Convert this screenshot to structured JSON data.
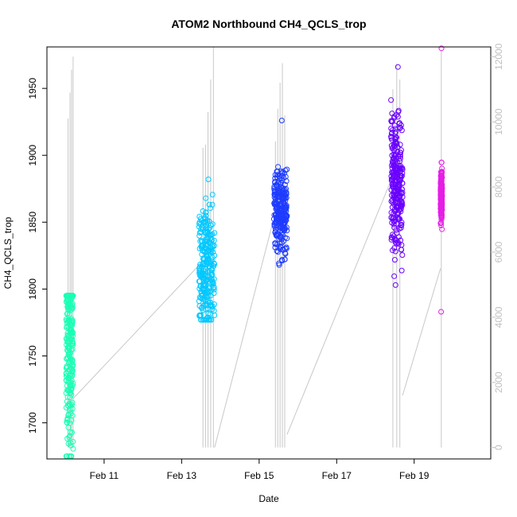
{
  "chart_data": {
    "type": "scatter",
    "title": "ATOM2 Northbound CH4_QCLS_trop",
    "xlabel": "Date",
    "ylabel": "CH4_QCLS_trop",
    "x_ticks": [
      "Feb 11",
      "Feb 13",
      "Feb 15",
      "Feb 17",
      "Feb 19"
    ],
    "x_tick_days": [
      11,
      13,
      15,
      17,
      19
    ],
    "xlim_days": [
      9.75,
      20.75
    ],
    "ylim": [
      1673,
      1981
    ],
    "y_ticks": [
      1700,
      1750,
      1800,
      1850,
      1900,
      1950
    ],
    "y2_ticks": [
      0,
      2000,
      4000,
      6000,
      8000,
      10000,
      12000
    ],
    "y2lim": [
      -350,
      12300
    ],
    "y2_color": "#c0c0c0",
    "grid": false,
    "marker": "open-circle",
    "series": [
      {
        "color": "#1affb4",
        "day_range": [
          10.02,
          10.2
        ],
        "ch4_mid": [
          1710,
          1800
        ],
        "ch4_range": [
          1675,
          1795
        ]
      },
      {
        "color": "#00c8ff",
        "day_range": [
          13.45,
          13.85
        ],
        "ch4_mid": [
          1790,
          1845
        ],
        "ch4_range": [
          1777,
          1882
        ]
      },
      {
        "color": "#1e3cff",
        "day_range": [
          15.38,
          15.72
        ],
        "ch4_mid": [
          1840,
          1875
        ],
        "ch4_range": [
          1818,
          1926
        ]
      },
      {
        "color": "#6a00ff",
        "day_range": [
          18.4,
          18.7
        ],
        "ch4_mid": [
          1850,
          1905
        ],
        "ch4_range": [
          1803,
          1966
        ]
      },
      {
        "color": "#e61ee6",
        "day_range": [
          19.68,
          19.72
        ],
        "ch4_mid": [
          1860,
          1880
        ],
        "ch4_range": [
          1783,
          1980
        ]
      }
    ],
    "altitude_trace": {
      "color": "#c8c8c8",
      "units": "m",
      "connectors": [
        {
          "from": [
            10.2,
            1500
          ],
          "to": [
            13.45,
            5600
          ]
        },
        {
          "from": [
            13.85,
            0
          ],
          "to": [
            15.35,
            6900
          ]
        },
        {
          "from": [
            15.72,
            400
          ],
          "to": [
            18.4,
            8200
          ]
        },
        {
          "from": [
            18.7,
            1600
          ],
          "to": [
            19.68,
            5500
          ]
        }
      ],
      "spikes": [
        {
          "day": 10.07,
          "top": 10100
        },
        {
          "day": 10.12,
          "top": 10900
        },
        {
          "day": 10.16,
          "top": 11600
        },
        {
          "day": 10.2,
          "top": 12000
        },
        {
          "day": 13.55,
          "top": 9200
        },
        {
          "day": 13.62,
          "top": 9300
        },
        {
          "day": 13.68,
          "top": 10300
        },
        {
          "day": 13.75,
          "top": 11300
        },
        {
          "day": 13.82,
          "top": 12300
        },
        {
          "day": 15.42,
          "top": 9400
        },
        {
          "day": 15.48,
          "top": 10400
        },
        {
          "day": 15.54,
          "top": 11200
        },
        {
          "day": 15.6,
          "top": 11800
        },
        {
          "day": 15.66,
          "top": 10200
        },
        {
          "day": 18.45,
          "top": 11000
        },
        {
          "day": 18.55,
          "top": 11800
        },
        {
          "day": 18.63,
          "top": 11300
        },
        {
          "day": 19.7,
          "top": 12200
        }
      ]
    }
  }
}
